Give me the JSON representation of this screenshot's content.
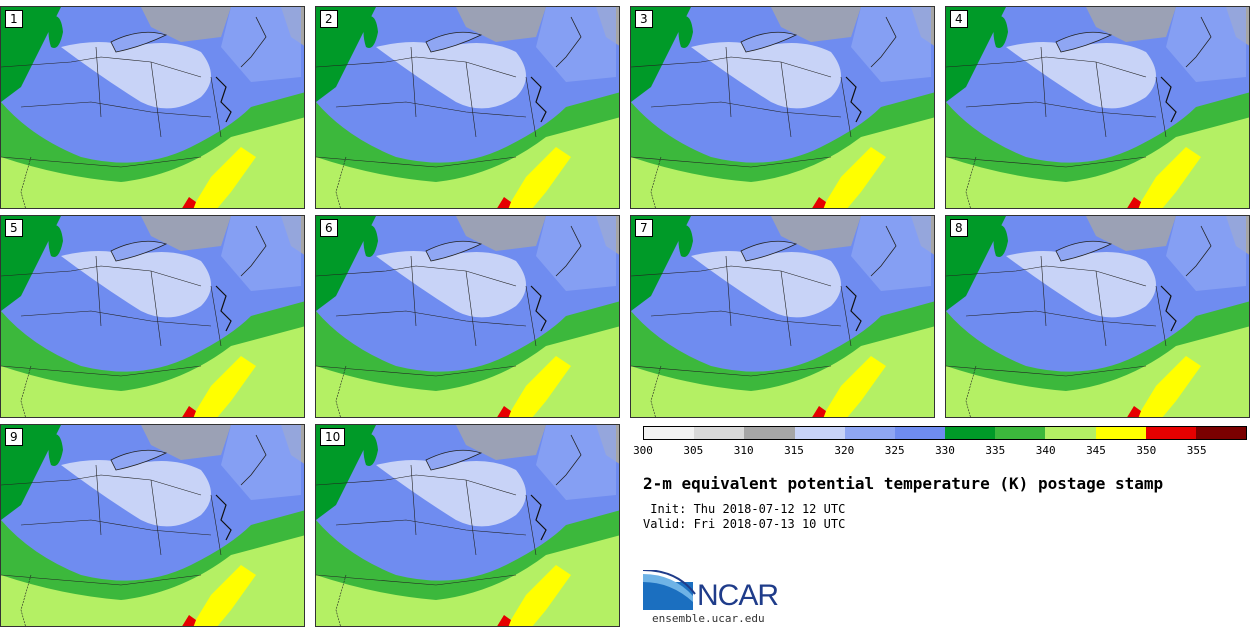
{
  "panels": [
    {
      "label": "1"
    },
    {
      "label": "2"
    },
    {
      "label": "3"
    },
    {
      "label": "4"
    },
    {
      "label": "5"
    },
    {
      "label": "6"
    },
    {
      "label": "7"
    },
    {
      "label": "8"
    },
    {
      "label": "9"
    },
    {
      "label": "10"
    }
  ],
  "colorbar": {
    "ticks": [
      "300",
      "305",
      "310",
      "315",
      "320",
      "325",
      "330",
      "335",
      "340",
      "345",
      "350",
      "355"
    ],
    "colors": [
      "#f2f2f2",
      "#d9d9d9",
      "#a6a6a6",
      "#c8d3f7",
      "#8fa6f3",
      "#6f8cf0",
      "#009a28",
      "#3cb83c",
      "#b4f064",
      "#ffff00",
      "#e60000",
      "#7a0000"
    ]
  },
  "title": "2-m equivalent potential temperature (K) postage stamp",
  "init": " Init: Thu 2018-07-12 12 UTC",
  "valid": "Valid: Fri 2018-07-13 10 UTC",
  "logo": {
    "text": "NCAR",
    "site": "ensemble.ucar.edu"
  }
}
